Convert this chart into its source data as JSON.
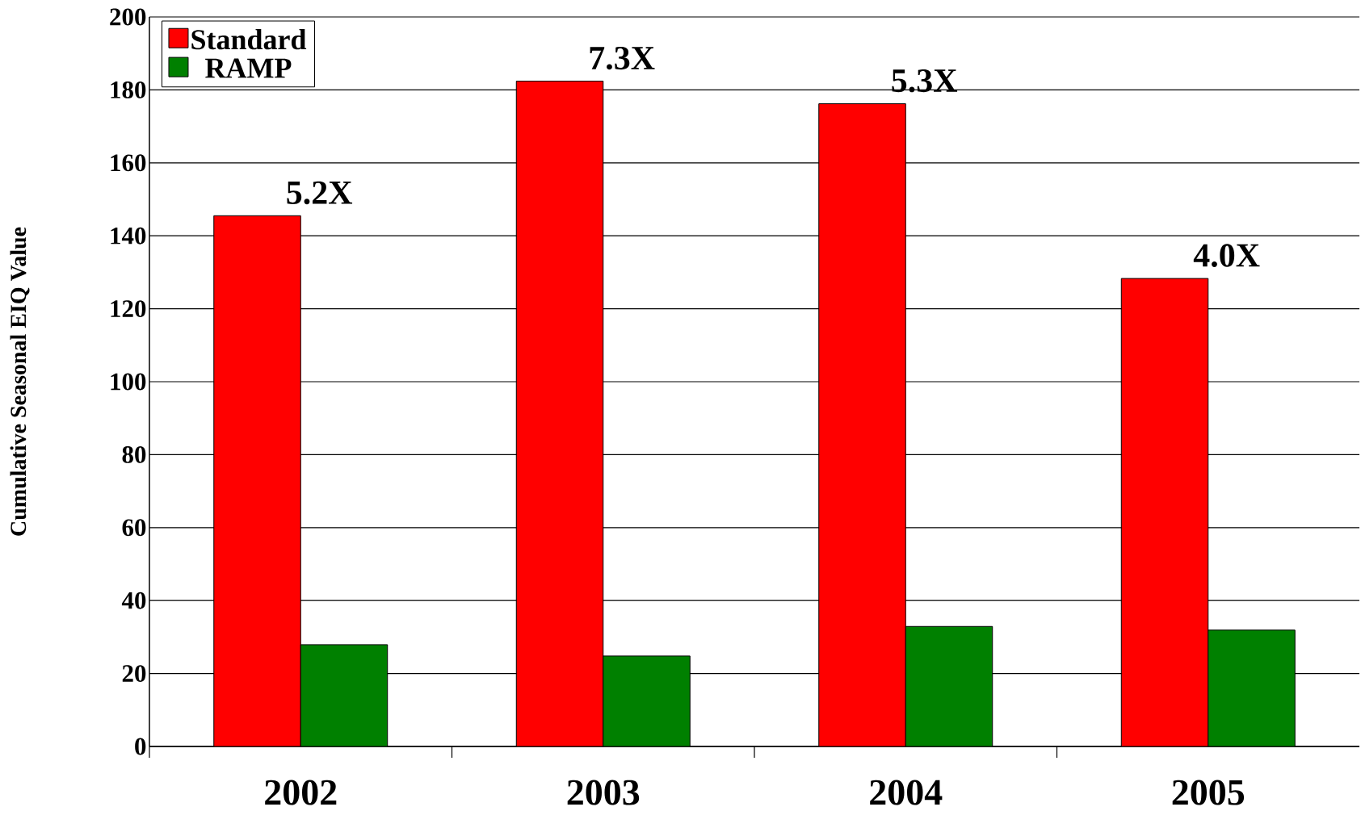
{
  "chart_data": {
    "type": "bar",
    "ylabel": "Cumulative Seasonal EIQ Value",
    "categories": [
      "2002",
      "2003",
      "2004",
      "2005"
    ],
    "series": [
      {
        "name": "Standard",
        "color": "#ff0000",
        "values": [
          145.5,
          182.4,
          176.2,
          128.3
        ]
      },
      {
        "name": "RAMP",
        "color": "#008000",
        "values": [
          27.9,
          24.8,
          32.9,
          31.9
        ]
      }
    ],
    "ylim": [
      0,
      200
    ],
    "yticks": [
      0,
      20,
      40,
      60,
      80,
      100,
      120,
      140,
      160,
      180,
      200
    ],
    "grid": "y",
    "legend": "top left",
    "annotations": [
      {
        "text": "5.2X",
        "x": "2002",
        "y": 145.5
      },
      {
        "text": "7.3X",
        "x": "2003",
        "y": 182.4
      },
      {
        "text": "5.3X",
        "x": "2004",
        "y": 176.2
      },
      {
        "text": "4.0X",
        "x": "2005",
        "y": 128.3
      }
    ]
  }
}
